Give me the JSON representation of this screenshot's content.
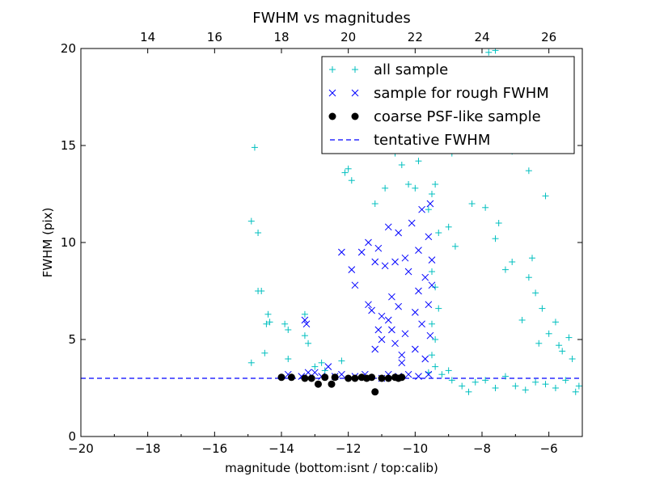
{
  "chart_data": {
    "type": "scatter",
    "title": "FWHM vs magnitudes",
    "xlabel": "magnitude (bottom:isnt / top:calib)",
    "ylabel": "FWHM (pix)",
    "xlim": [
      -20,
      -5
    ],
    "ylim": [
      0,
      20
    ],
    "x_ticks": [
      -20,
      -18,
      -16,
      -14,
      -12,
      -10,
      -8,
      -6
    ],
    "x_tick_labels": [
      "−20",
      "−18",
      "−16",
      "−14",
      "−12",
      "−10",
      "−8",
      "−6"
    ],
    "y_ticks": [
      0,
      5,
      10,
      15,
      20
    ],
    "y_tick_labels": [
      "0",
      "5",
      "10",
      "15",
      "20"
    ],
    "top_axis": {
      "offset": 32,
      "ticks": [
        14,
        16,
        18,
        20,
        22,
        24,
        26
      ],
      "tick_labels": [
        "14",
        "16",
        "18",
        "20",
        "22",
        "24",
        "26"
      ]
    },
    "grid": false,
    "legend": {
      "placement": "top-right",
      "entries": [
        {
          "label": "all sample",
          "marker": "plus",
          "color": "#00bfbf"
        },
        {
          "label": "sample for rough FWHM",
          "marker": "x",
          "color": "#0000ff"
        },
        {
          "label": "coarse PSF-like sample",
          "marker": "circle",
          "color": "#000000"
        },
        {
          "label": "tentative FWHM",
          "marker": "dashed-line",
          "color": "#0000ff"
        }
      ]
    },
    "tentative_fwhm": 3.0,
    "series": [
      {
        "name": "all sample",
        "marker": "plus",
        "color": "#00bfbf",
        "points": [
          [
            -14.8,
            14.9
          ],
          [
            -14.9,
            11.1
          ],
          [
            -14.7,
            10.5
          ],
          [
            -14.7,
            7.5
          ],
          [
            -14.6,
            7.5
          ],
          [
            -14.4,
            6.3
          ],
          [
            -14.45,
            5.8
          ],
          [
            -14.35,
            5.9
          ],
          [
            -14.5,
            4.3
          ],
          [
            -14.9,
            3.8
          ],
          [
            -13.9,
            5.8
          ],
          [
            -13.8,
            5.5
          ],
          [
            -13.8,
            4.0
          ],
          [
            -13.3,
            6.3
          ],
          [
            -13.3,
            5.2
          ],
          [
            -13.2,
            4.8
          ],
          [
            -13.0,
            3.6
          ],
          [
            -12.8,
            3.8
          ],
          [
            -12.7,
            3.4
          ],
          [
            -12.2,
            3.9
          ],
          [
            -12.1,
            13.6
          ],
          [
            -12.0,
            13.8
          ],
          [
            -11.9,
            13.2
          ],
          [
            -11.2,
            12.0
          ],
          [
            -10.9,
            12.8
          ],
          [
            -10.6,
            14.6
          ],
          [
            -10.4,
            14.0
          ],
          [
            -10.2,
            13.0
          ],
          [
            -10.0,
            12.8
          ],
          [
            -9.9,
            14.2
          ],
          [
            -9.5,
            12.5
          ],
          [
            -9.6,
            11.7
          ],
          [
            -9.4,
            13.0
          ],
          [
            -9.2,
            16.2
          ],
          [
            -8.9,
            14.6
          ],
          [
            -8.6,
            15.6
          ],
          [
            -8.3,
            16.6
          ],
          [
            -8.0,
            17.0
          ],
          [
            -7.8,
            19.8
          ],
          [
            -7.6,
            19.9
          ],
          [
            -7.4,
            15.8
          ],
          [
            -7.1,
            14.7
          ],
          [
            -6.6,
            13.7
          ],
          [
            -6.1,
            12.4
          ],
          [
            -8.3,
            12.0
          ],
          [
            -7.9,
            11.8
          ],
          [
            -7.5,
            11.0
          ],
          [
            -9.3,
            10.5
          ],
          [
            -9.0,
            10.8
          ],
          [
            -8.8,
            9.8
          ],
          [
            -9.5,
            8.5
          ],
          [
            -9.4,
            7.7
          ],
          [
            -9.3,
            6.6
          ],
          [
            -9.5,
            5.8
          ],
          [
            -9.4,
            5.0
          ],
          [
            -9.5,
            4.2
          ],
          [
            -9.4,
            3.6
          ],
          [
            -9.6,
            3.3
          ],
          [
            -9.2,
            3.2
          ],
          [
            -9.0,
            3.4
          ],
          [
            -8.9,
            2.9
          ],
          [
            -8.6,
            2.6
          ],
          [
            -8.4,
            2.3
          ],
          [
            -8.2,
            2.8
          ],
          [
            -7.9,
            2.9
          ],
          [
            -7.6,
            2.5
          ],
          [
            -7.3,
            3.1
          ],
          [
            -7.0,
            2.6
          ],
          [
            -6.7,
            2.4
          ],
          [
            -6.4,
            2.8
          ],
          [
            -6.1,
            2.7
          ],
          [
            -5.8,
            2.5
          ],
          [
            -5.5,
            2.9
          ],
          [
            -5.2,
            2.3
          ],
          [
            -5.1,
            2.6
          ],
          [
            -6.8,
            6.0
          ],
          [
            -6.6,
            8.2
          ],
          [
            -6.4,
            7.4
          ],
          [
            -6.5,
            9.2
          ],
          [
            -6.2,
            6.6
          ],
          [
            -5.8,
            5.9
          ],
          [
            -5.6,
            4.4
          ],
          [
            -5.4,
            5.1
          ],
          [
            -5.3,
            4.0
          ],
          [
            -5.7,
            4.7
          ],
          [
            -6.0,
            5.3
          ],
          [
            -6.3,
            4.8
          ],
          [
            -7.1,
            9.0
          ],
          [
            -7.3,
            8.6
          ],
          [
            -7.6,
            10.2
          ]
        ]
      },
      {
        "name": "sample for rough FWHM",
        "marker": "x",
        "color": "#0000ff",
        "points": [
          [
            -13.8,
            3.2
          ],
          [
            -13.4,
            3.1
          ],
          [
            -13.3,
            6.0
          ],
          [
            -13.25,
            5.8
          ],
          [
            -13.2,
            3.3
          ],
          [
            -13.0,
            3.3
          ],
          [
            -12.8,
            3.1
          ],
          [
            -12.6,
            3.6
          ],
          [
            -12.4,
            3.1
          ],
          [
            -12.2,
            3.2
          ],
          [
            -12.2,
            9.5
          ],
          [
            -11.9,
            8.6
          ],
          [
            -11.8,
            7.8
          ],
          [
            -11.6,
            9.5
          ],
          [
            -11.4,
            6.8
          ],
          [
            -11.4,
            10.0
          ],
          [
            -11.3,
            6.5
          ],
          [
            -11.2,
            9.0
          ],
          [
            -11.1,
            9.7
          ],
          [
            -11.2,
            4.5
          ],
          [
            -11.1,
            5.5
          ],
          [
            -11.0,
            6.2
          ],
          [
            -11.0,
            5.0
          ],
          [
            -10.9,
            8.8
          ],
          [
            -10.8,
            10.8
          ],
          [
            -10.8,
            6.0
          ],
          [
            -10.7,
            7.2
          ],
          [
            -10.7,
            5.5
          ],
          [
            -10.6,
            4.8
          ],
          [
            -10.6,
            9.0
          ],
          [
            -10.5,
            10.5
          ],
          [
            -10.5,
            6.7
          ],
          [
            -10.4,
            4.2
          ],
          [
            -10.4,
            3.8
          ],
          [
            -10.3,
            9.2
          ],
          [
            -10.3,
            5.3
          ],
          [
            -10.2,
            8.5
          ],
          [
            -10.1,
            11.0
          ],
          [
            -10.0,
            6.4
          ],
          [
            -10.0,
            4.5
          ],
          [
            -9.9,
            7.5
          ],
          [
            -9.9,
            9.6
          ],
          [
            -9.8,
            11.7
          ],
          [
            -9.8,
            5.8
          ],
          [
            -9.7,
            8.2
          ],
          [
            -9.7,
            4.0
          ],
          [
            -9.6,
            10.3
          ],
          [
            -9.6,
            6.8
          ],
          [
            -9.55,
            12.0
          ],
          [
            -9.55,
            5.2
          ],
          [
            -9.5,
            9.1
          ],
          [
            -9.5,
            7.8
          ],
          [
            -11.8,
            3.1
          ],
          [
            -11.5,
            3.2
          ],
          [
            -11.0,
            3.0
          ],
          [
            -10.8,
            3.2
          ],
          [
            -10.5,
            3.1
          ],
          [
            -10.2,
            3.2
          ],
          [
            -9.9,
            3.1
          ],
          [
            -9.6,
            3.2
          ]
        ]
      },
      {
        "name": "coarse PSF-like sample",
        "marker": "circle",
        "color": "#000000",
        "points": [
          [
            -14.0,
            3.05
          ],
          [
            -13.7,
            3.05
          ],
          [
            -13.3,
            3.0
          ],
          [
            -13.1,
            3.0
          ],
          [
            -12.9,
            2.7
          ],
          [
            -12.7,
            3.05
          ],
          [
            -12.5,
            2.7
          ],
          [
            -12.4,
            3.05
          ],
          [
            -12.0,
            3.0
          ],
          [
            -11.8,
            3.0
          ],
          [
            -11.6,
            3.05
          ],
          [
            -11.45,
            3.0
          ],
          [
            -11.3,
            3.05
          ],
          [
            -11.2,
            2.3
          ],
          [
            -11.0,
            3.0
          ],
          [
            -10.8,
            3.0
          ],
          [
            -10.6,
            3.05
          ],
          [
            -10.5,
            3.0
          ],
          [
            -10.4,
            3.05
          ]
        ]
      }
    ]
  }
}
